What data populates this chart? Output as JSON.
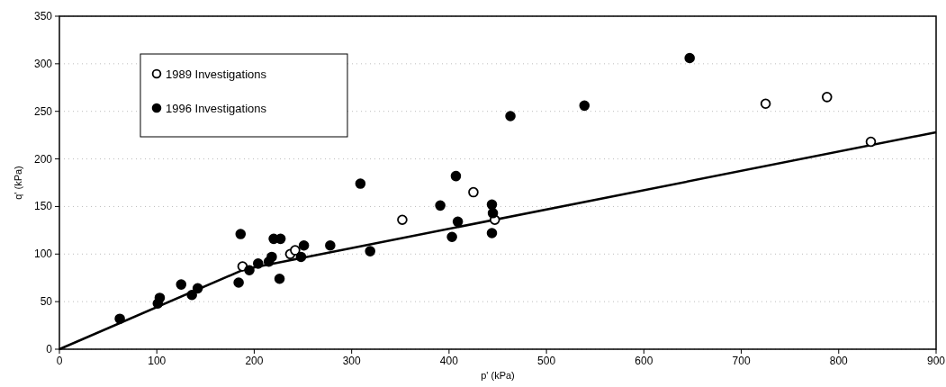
{
  "chart_data": {
    "type": "scatter",
    "xlabel": "p' (kPa)",
    "ylabel": "q' (kPa)",
    "xlim": [
      0,
      900
    ],
    "xticks": [
      0,
      100,
      200,
      300,
      400,
      500,
      600,
      700,
      800,
      900
    ],
    "ylim": [
      0,
      350
    ],
    "yticks": [
      0,
      50,
      100,
      150,
      200,
      250,
      300,
      350
    ],
    "grid": "y",
    "legend": "top left",
    "marker": "circle",
    "series": [
      {
        "name": "1989 Investigations",
        "color": "#ffffff",
        "x": [
          188,
          237,
          242,
          352,
          425,
          447,
          725,
          788,
          833
        ],
        "values": [
          87,
          100,
          104,
          136,
          165,
          136,
          258,
          265,
          218
        ]
      },
      {
        "name": "1996 Investigations",
        "color": "#000000",
        "x": [
          62,
          101,
          103,
          125,
          136,
          142,
          184,
          186,
          195,
          204,
          215,
          218,
          220,
          227,
          226,
          248,
          251,
          278,
          309,
          319,
          391,
          407,
          409,
          403,
          444,
          445,
          444,
          463,
          539,
          647
        ],
        "values": [
          32,
          48,
          54,
          68,
          57,
          64,
          70,
          121,
          83,
          90,
          92,
          97,
          116,
          116,
          74,
          97,
          109,
          109,
          174,
          103,
          151,
          182,
          134,
          118,
          152,
          143,
          122,
          245,
          256,
          306
        ]
      },
      {
        "type": "line",
        "color": "#000000",
        "marker": "none",
        "line_style": "solid",
        "x": [
          0,
          190,
          900
        ],
        "values": [
          0,
          84,
          228
        ]
      }
    ]
  }
}
